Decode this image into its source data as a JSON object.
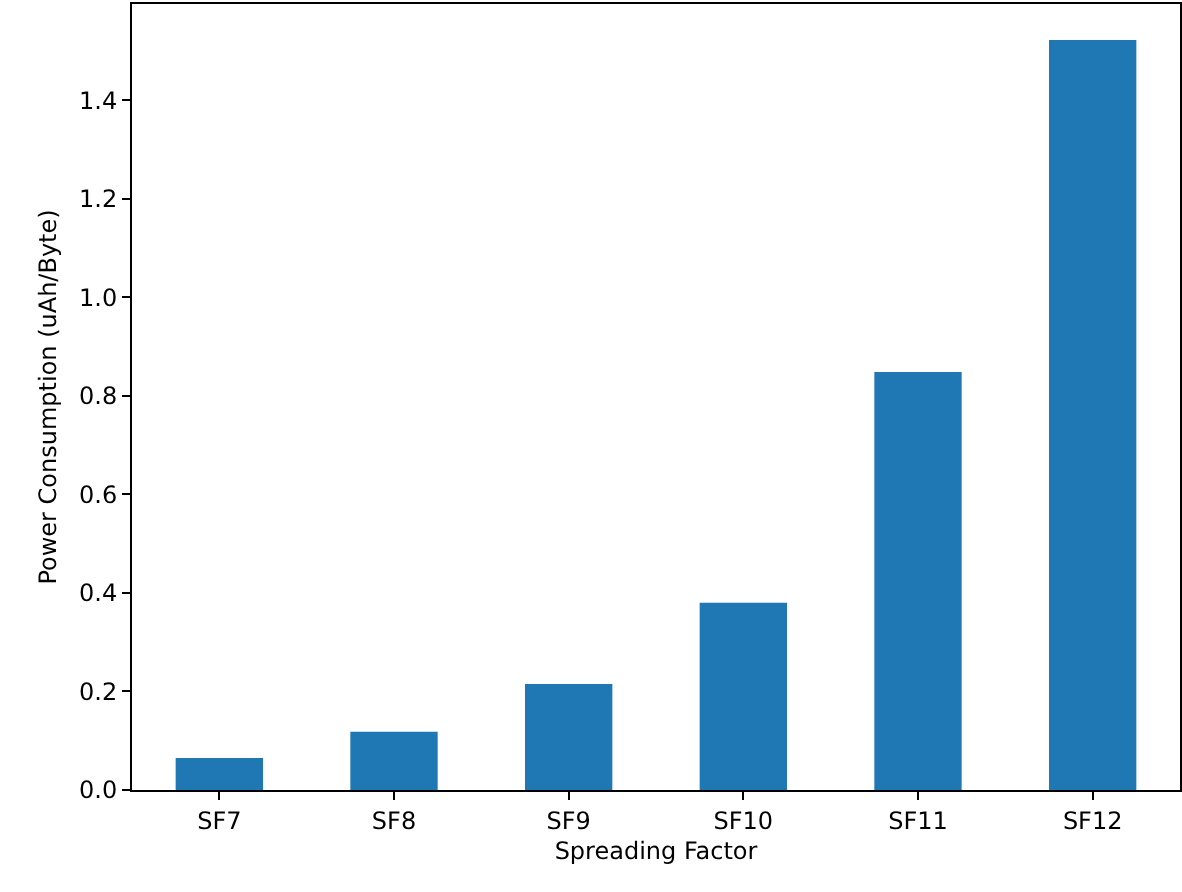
{
  "chart_data": {
    "type": "bar",
    "xlabel": "Spreading Factor",
    "ylabel": "Power Consumption (uAh/Byte)",
    "categories": [
      "SF7",
      "SF8",
      "SF9",
      "SF10",
      "SF11",
      "SF12"
    ],
    "values": [
      0.065,
      0.118,
      0.215,
      0.38,
      0.848,
      1.522
    ],
    "color": "#1f77b4",
    "ylim": [
      0,
      1.595
    ],
    "yticks": [
      {
        "value": 0,
        "label": "0.0"
      },
      {
        "value": 0.2,
        "label": "0.2"
      },
      {
        "value": 0.4,
        "label": "0.4"
      },
      {
        "value": 0.6,
        "label": "0.6"
      },
      {
        "value": 0.8,
        "label": "0.8"
      },
      {
        "value": 1,
        "label": "1.0"
      },
      {
        "value": 1.2,
        "label": "1.2"
      },
      {
        "value": 1.4,
        "label": "1.4"
      }
    ],
    "grid": false,
    "legend": false
  }
}
